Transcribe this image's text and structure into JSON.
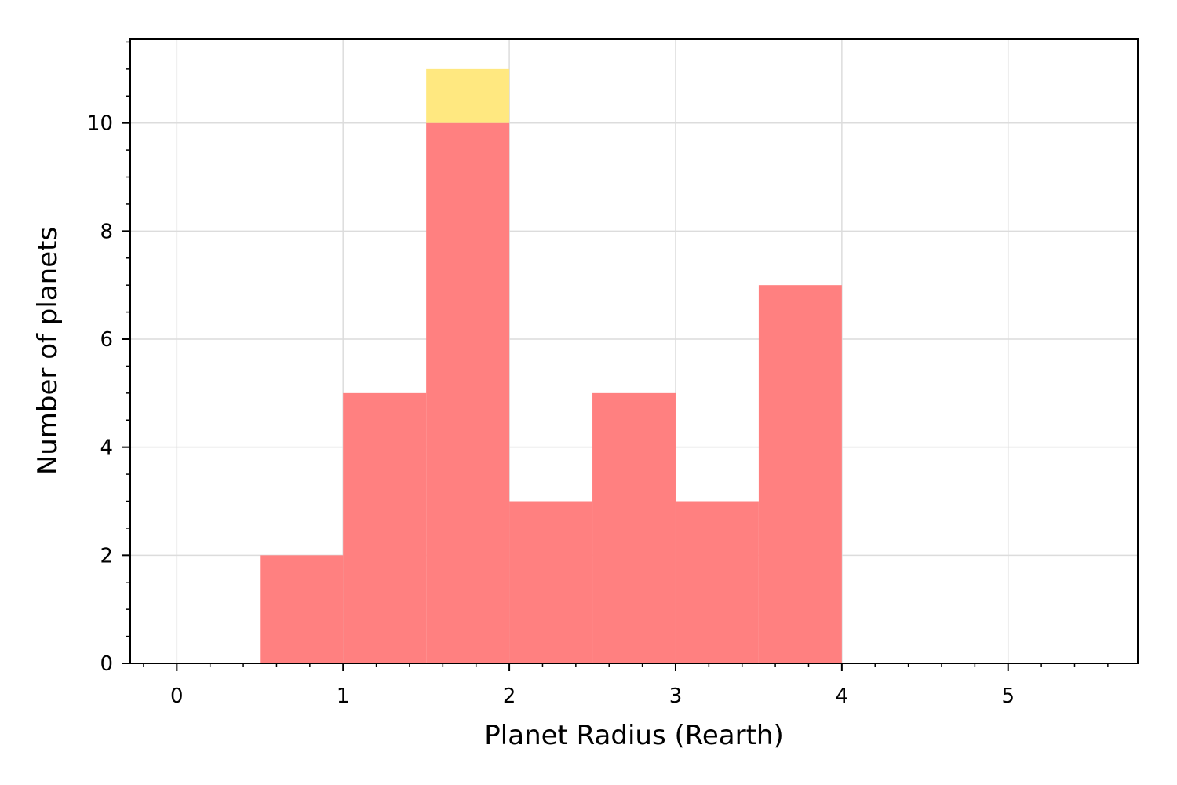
{
  "chart_data": {
    "type": "bar",
    "xlabel": "Planet Radius (Rearth)",
    "ylabel": "Number of planets",
    "xlim": [
      -0.28,
      5.78
    ],
    "ylim": [
      0,
      11.55
    ],
    "xticks": [
      0,
      1,
      2,
      3,
      4,
      5
    ],
    "yticks": [
      0,
      2,
      4,
      6,
      8,
      10
    ],
    "grid": true,
    "colors": {
      "series_0": "#ff8080",
      "series_1": "#ffe880",
      "grid": "#dcdcdc"
    },
    "bins": [
      {
        "x0": 0.5,
        "x1": 1.0
      },
      {
        "x0": 1.0,
        "x1": 1.5
      },
      {
        "x0": 1.5,
        "x1": 2.0
      },
      {
        "x0": 2.0,
        "x1": 2.5
      },
      {
        "x0": 2.5,
        "x1": 3.0
      },
      {
        "x0": 3.0,
        "x1": 3.5
      },
      {
        "x0": 3.5,
        "x1": 4.0
      }
    ],
    "series": [
      {
        "values": [
          2,
          5,
          10,
          3,
          5,
          3,
          7
        ]
      },
      {
        "values": [
          0,
          0,
          1,
          0,
          0,
          0,
          0
        ]
      }
    ]
  }
}
